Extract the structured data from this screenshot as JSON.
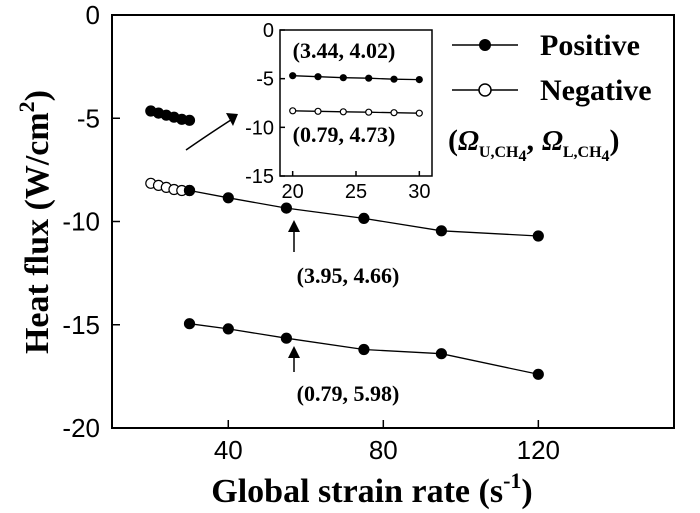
{
  "chart_data": [
    {
      "type": "line",
      "xlabel": "Global strain rate (s",
      "xlabel_sup": "-1",
      "xlabel_close": ")",
      "ylabel": "Heat flux (W/cm",
      "ylabel_sup": "2",
      "ylabel_close": ")",
      "xlim": [
        10,
        155
      ],
      "ylim": [
        -20,
        0
      ],
      "xticks": [
        40,
        80,
        120
      ],
      "xtick_labels": [
        "40",
        "80",
        "120"
      ],
      "yticks": [
        0,
        -5,
        -10,
        -15,
        -20
      ],
      "ytick_labels": [
        "0",
        "-5",
        "-10",
        "-15",
        "-20"
      ],
      "legend": {
        "placement": "top-right",
        "entries": [
          "Positive",
          "Negative"
        ],
        "param_prefix": "(",
        "param_symbol": "Ω",
        "param_sub_u": "U,CH",
        "param_sub_l": "L,CH",
        "param_sub_num": "4",
        "param_sep": ",",
        "param_close": ")"
      },
      "series": [
        {
          "marker": "filled",
          "x": [
            20,
            22,
            24,
            26,
            28,
            30
          ],
          "y": [
            -4.65,
            -4.75,
            -4.85,
            -4.95,
            -5.05,
            -5.1
          ]
        },
        {
          "marker": "open",
          "x": [
            20,
            22,
            24,
            26,
            28,
            30
          ],
          "y": [
            -8.15,
            -8.25,
            -8.35,
            -8.45,
            -8.5,
            -8.5
          ]
        },
        {
          "marker": "filled",
          "x": [
            30,
            40,
            55,
            75,
            95,
            120
          ],
          "y": [
            -8.5,
            -8.85,
            -9.35,
            -9.85,
            -10.45,
            -10.7
          ]
        },
        {
          "marker": "filled",
          "x": [
            30,
            40,
            55,
            75,
            95,
            120
          ],
          "y": [
            -14.95,
            -15.2,
            -15.65,
            -16.2,
            -16.4,
            -17.4
          ]
        }
      ],
      "annotations": [
        {
          "text": "(3.95, 4.66)",
          "x": 60,
          "y": -12.6
        },
        {
          "text": "(0.79, 5.98)",
          "x": 60,
          "y": -18.3
        }
      ]
    },
    {
      "type": "line",
      "position": "inset",
      "xlim": [
        19,
        31
      ],
      "ylim": [
        -15,
        0
      ],
      "xticks": [
        20,
        25,
        30
      ],
      "xtick_labels": [
        "20",
        "25",
        "30"
      ],
      "yticks": [
        0,
        -5,
        -10,
        -15
      ],
      "ytick_labels": [
        "0",
        "-5",
        "-10",
        "-15"
      ],
      "series": [
        {
          "marker": "filled",
          "x": [
            20,
            22,
            24,
            26,
            28,
            30
          ],
          "y": [
            -4.7,
            -4.8,
            -4.9,
            -4.95,
            -5.05,
            -5.1
          ]
        },
        {
          "marker": "open",
          "x": [
            20,
            22,
            24,
            26,
            28,
            30
          ],
          "y": [
            -8.3,
            -8.35,
            -8.4,
            -8.45,
            -8.5,
            -8.55
          ]
        }
      ],
      "annotations": [
        {
          "text": "(3.44, 4.02)",
          "x": 25,
          "y": -2.2
        },
        {
          "text": "(0.79, 4.73)",
          "x": 25,
          "y": -11.3
        }
      ]
    }
  ]
}
